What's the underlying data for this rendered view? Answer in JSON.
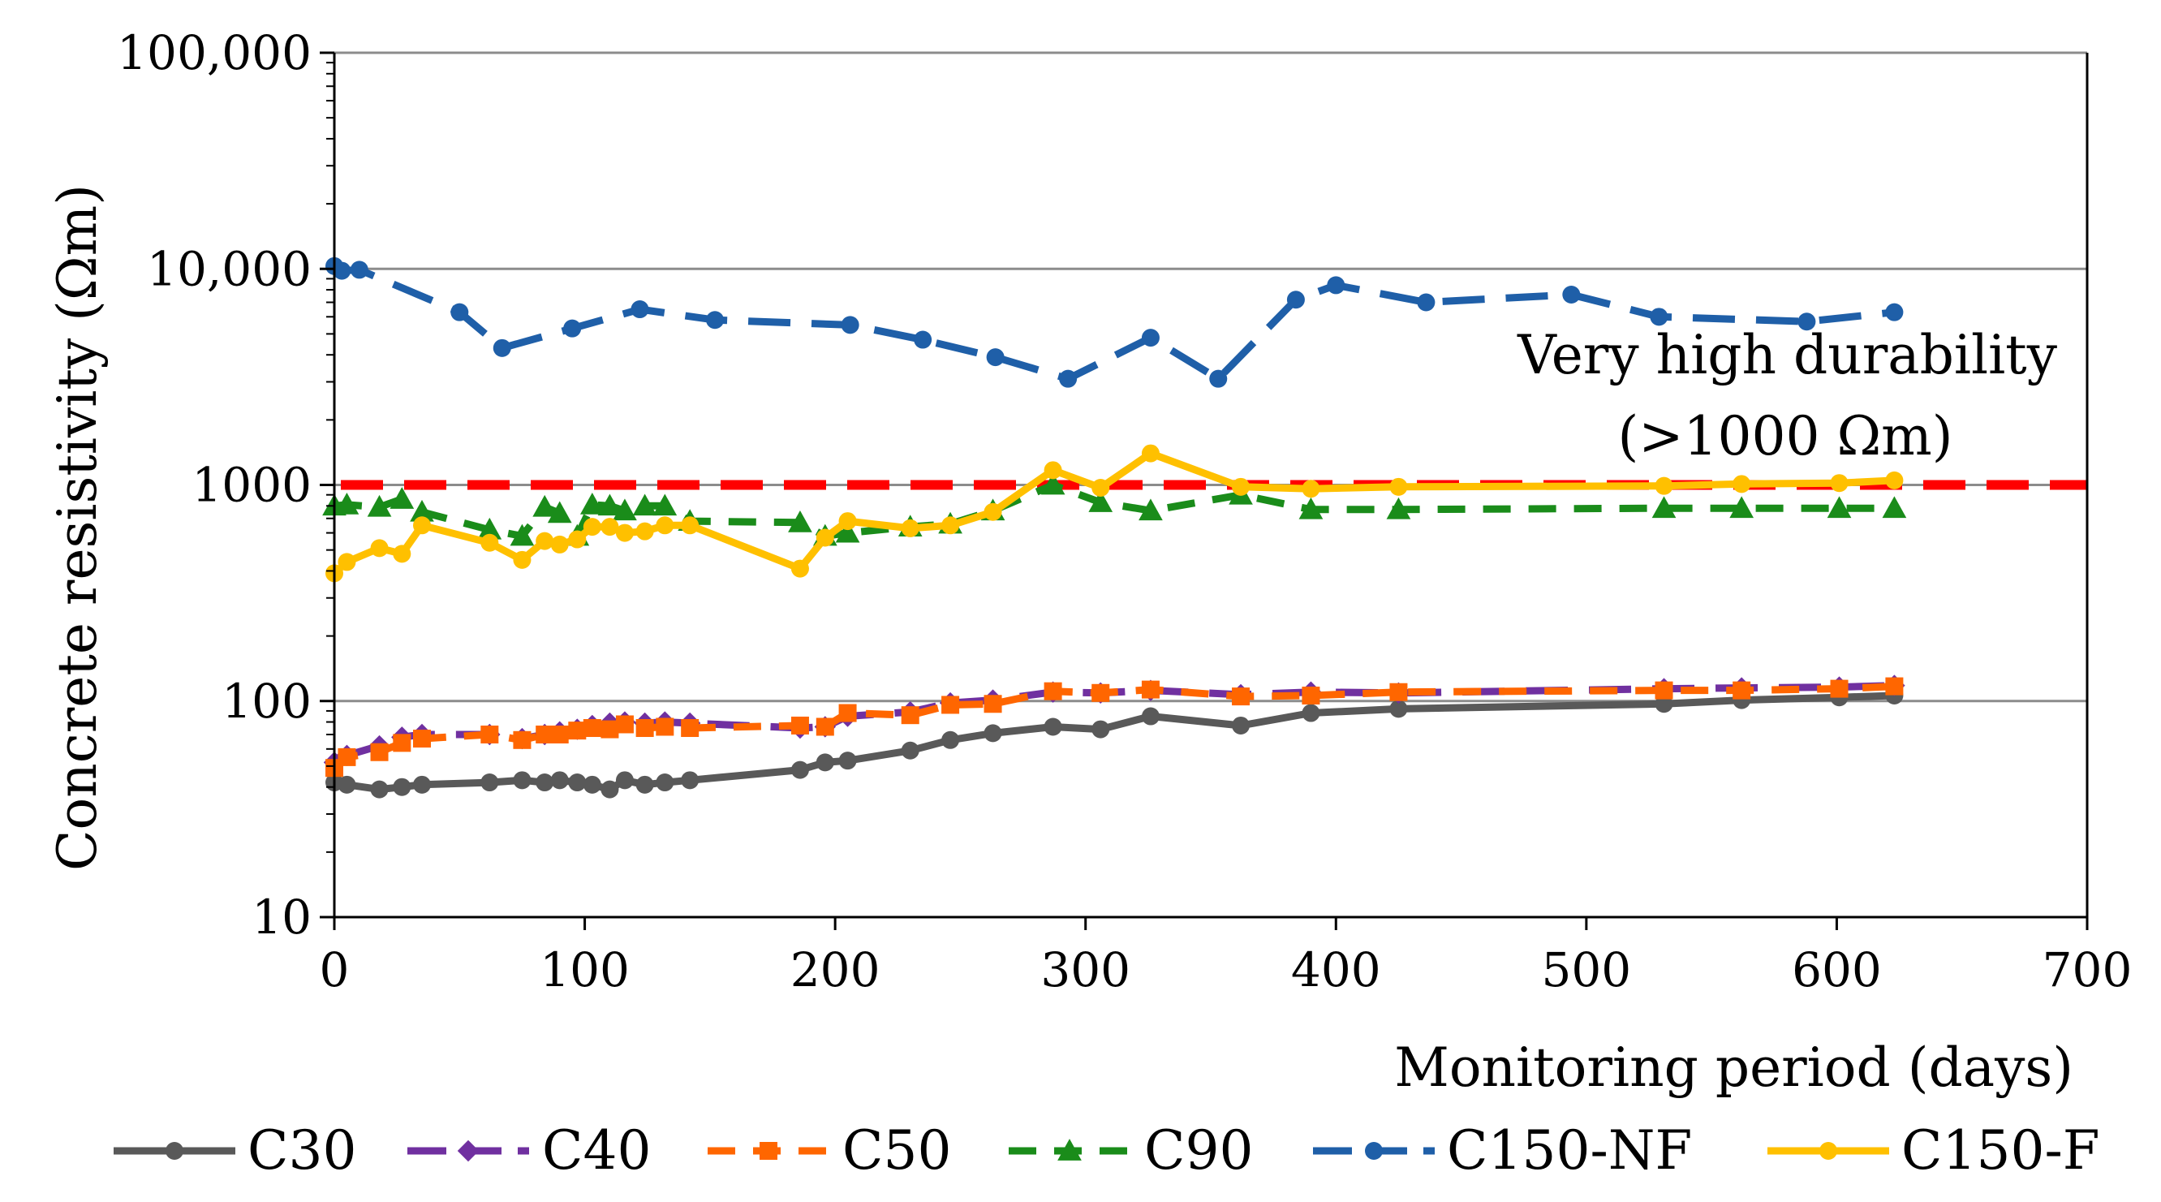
{
  "chart_data": {
    "type": "line",
    "title": "",
    "xlabel": "Monitoring period (days)",
    "ylabel": "Concrete resistivity (Ωm)",
    "xlim": [
      0,
      700
    ],
    "ylim": [
      10,
      100000
    ],
    "yscale": "log",
    "xticks": [
      0,
      100,
      200,
      300,
      400,
      500,
      600,
      700
    ],
    "xtick_labels": [
      "0",
      "100",
      "200",
      "300",
      "400",
      "500",
      "600",
      "700"
    ],
    "yticks": [
      10,
      100,
      1000,
      10000,
      100000
    ],
    "ytick_labels": [
      "10",
      "100",
      "1000",
      "10,000",
      "100,000"
    ],
    "grid": "horizontal major lines",
    "legend_position": "bottom",
    "threshold": {
      "value": 1000,
      "color": "#ff0000",
      "label_line1": "Very high durability",
      "label_line2": "(>1000 Ωm)"
    },
    "series": [
      {
        "name": "C30",
        "color": "#595959",
        "dash": "solid",
        "marker": "circle",
        "x": [
          0,
          5,
          18,
          27,
          35,
          62,
          75,
          84,
          90,
          97,
          103,
          110,
          116,
          124,
          132,
          142,
          186,
          196,
          205,
          230,
          246,
          263,
          287,
          306,
          326,
          362,
          390,
          425,
          531,
          562,
          601,
          623
        ],
        "y": [
          42,
          41,
          39,
          40,
          41,
          42,
          43,
          42,
          43,
          42,
          41,
          39,
          43,
          41,
          42,
          43,
          48,
          52,
          53,
          59,
          66,
          71,
          76,
          74,
          85,
          77,
          88,
          92,
          97,
          101,
          104,
          106
        ]
      },
      {
        "name": "C40",
        "color": "#7030a0",
        "dash": "long-dash",
        "marker": "diamond",
        "x": [
          0,
          5,
          18,
          27,
          35,
          62,
          75,
          84,
          90,
          97,
          103,
          110,
          116,
          124,
          132,
          142,
          186,
          196,
          205,
          230,
          246,
          263,
          287,
          306,
          326,
          362,
          390,
          425,
          531,
          562,
          601,
          623
        ],
        "y": [
          52,
          56,
          62,
          68,
          70,
          70,
          67,
          70,
          72,
          74,
          77,
          79,
          80,
          79,
          80,
          79,
          75,
          76,
          85,
          89,
          98,
          101,
          110,
          109,
          112,
          107,
          110,
          109,
          114,
          115,
          116,
          118
        ]
      },
      {
        "name": "C50",
        "color": "#ff6600",
        "dash": "dash",
        "marker": "square",
        "x": [
          0,
          5,
          18,
          27,
          35,
          62,
          75,
          84,
          90,
          97,
          103,
          110,
          116,
          124,
          132,
          142,
          186,
          196,
          205,
          230,
          246,
          263,
          287,
          306,
          326,
          362,
          390,
          425,
          531,
          562,
          601,
          623
        ],
        "y": [
          49,
          55,
          58,
          64,
          67,
          70,
          66,
          70,
          70,
          73,
          75,
          74,
          78,
          75,
          76,
          75,
          77,
          76,
          88,
          86,
          96,
          97,
          111,
          109,
          113,
          105,
          106,
          110,
          112,
          112,
          114,
          117
        ]
      },
      {
        "name": "C90",
        "color": "#1a8c1a",
        "dash": "dash",
        "marker": "triangle",
        "x": [
          0,
          5,
          18,
          27,
          35,
          62,
          75,
          84,
          90,
          97,
          103,
          110,
          116,
          124,
          132,
          142,
          186,
          196,
          205,
          230,
          246,
          263,
          287,
          306,
          326,
          362,
          390,
          425,
          531,
          562,
          601,
          623
        ],
        "y": [
          800,
          810,
          790,
          860,
          750,
          620,
          580,
          790,
          740,
          580,
          810,
          800,
          760,
          800,
          800,
          680,
          670,
          580,
          600,
          640,
          660,
          760,
          1000,
          830,
          760,
          900,
          770,
          770,
          780,
          780,
          780,
          780
        ]
      },
      {
        "name": "C150-NF",
        "color": "#1f5fa8",
        "dash": "long-dash",
        "marker": "circle",
        "x": [
          0,
          3,
          10,
          50,
          67,
          95,
          122,
          152,
          206,
          235,
          264,
          293,
          326,
          353,
          384,
          400,
          436,
          494,
          529,
          588,
          623
        ],
        "y": [
          10300,
          9800,
          9900,
          6300,
          4300,
          5300,
          6500,
          5800,
          5500,
          4700,
          3900,
          3100,
          4800,
          3100,
          7200,
          8400,
          7000,
          7600,
          6000,
          5700,
          6300
        ]
      },
      {
        "name": "C150-F",
        "color": "#ffc000",
        "dash": "solid",
        "marker": "circle",
        "x": [
          0,
          5,
          18,
          27,
          35,
          62,
          75,
          84,
          90,
          97,
          103,
          110,
          116,
          124,
          132,
          142,
          186,
          196,
          205,
          230,
          246,
          263,
          287,
          306,
          326,
          362,
          390,
          425,
          531,
          562,
          601,
          623
        ],
        "y": [
          390,
          440,
          510,
          480,
          650,
          540,
          450,
          550,
          530,
          560,
          640,
          640,
          600,
          610,
          650,
          650,
          410,
          570,
          680,
          630,
          650,
          750,
          1170,
          970,
          1400,
          980,
          960,
          980,
          990,
          1010,
          1020,
          1050
        ]
      }
    ]
  }
}
